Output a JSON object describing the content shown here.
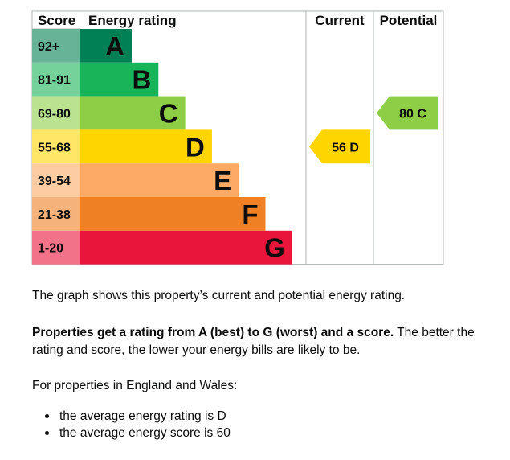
{
  "chart_data": {
    "type": "bar",
    "headers": {
      "score": "Score",
      "rating": "Energy rating",
      "current": "Current",
      "potential": "Potential"
    },
    "bands": [
      {
        "score": "92+",
        "letter": "A",
        "color": "#008054",
        "score_bg": "#66b398"
      },
      {
        "score": "81-91",
        "letter": "B",
        "color": "#19b459",
        "score_bg": "#75d29b"
      },
      {
        "score": "69-80",
        "letter": "C",
        "color": "#8dce46",
        "score_bg": "#bbe290"
      },
      {
        "score": "55-68",
        "letter": "D",
        "color": "#ffd500",
        "score_bg": "#ffe666"
      },
      {
        "score": "39-54",
        "letter": "E",
        "color": "#fcaa65",
        "score_bg": "#fdcca3"
      },
      {
        "score": "21-38",
        "letter": "F",
        "color": "#ef8023",
        "score_bg": "#f5b37b"
      },
      {
        "score": "1-20",
        "letter": "G",
        "color": "#e9153b",
        "score_bg": "#f27389"
      }
    ],
    "current": {
      "value": 56,
      "letter": "D",
      "label": "56  D"
    },
    "potential": {
      "value": 80,
      "letter": "C",
      "label": "80  C"
    }
  },
  "text": {
    "summary": "The graph shows this property’s current and potential energy rating.",
    "rating_bold": "Properties get a rating from A (best) to G (worst) and a score.",
    "rating_rest": " The better the rating and score, the lower your energy bills are likely to be.",
    "region_intro": "For properties in England and Wales:",
    "bullets": [
      "the average energy rating is D",
      "the average energy score is 60"
    ]
  }
}
